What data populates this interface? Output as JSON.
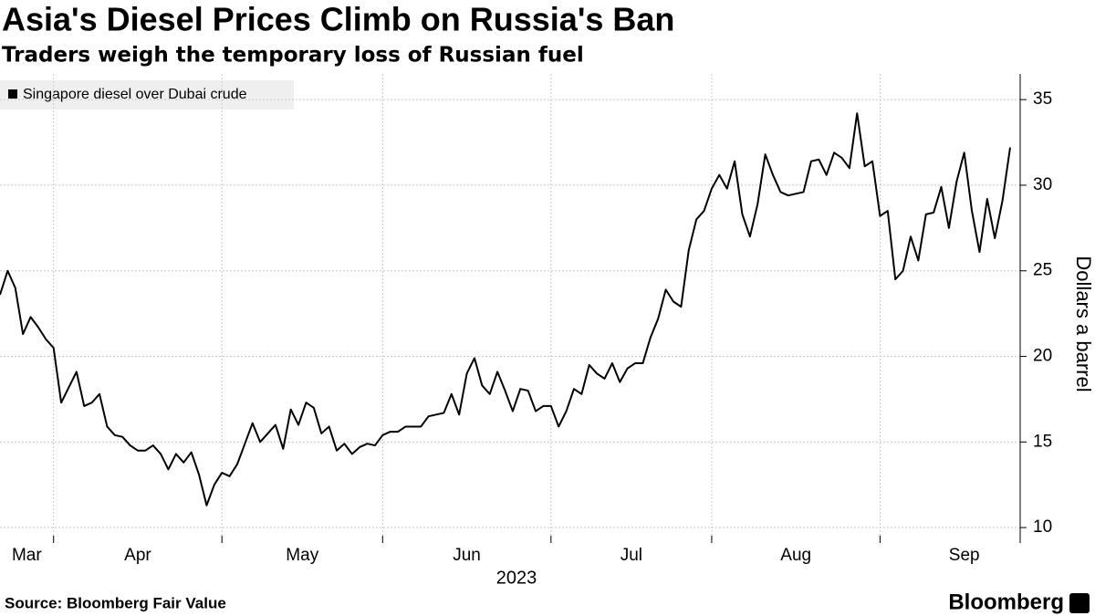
{
  "chart_data": {
    "type": "line",
    "title": "Asia's Diesel Prices Climb on Russia's Ban",
    "subtitle": "Traders weigh the temporary loss of Russian fuel",
    "ylabel": "Dollars a barrel",
    "xlabel": "2023",
    "source": "Source: Bloomberg Fair Value",
    "brand": "Bloomberg",
    "ylim": [
      9.1,
      36.5
    ],
    "yticks": [
      10,
      15,
      20,
      25,
      30,
      35
    ],
    "grid": true,
    "axis_side": "right",
    "categories": [
      "Mar",
      null,
      null,
      null,
      null,
      null,
      null,
      "Apr",
      null,
      null,
      null,
      null,
      null,
      null,
      null,
      null,
      null,
      null,
      null,
      null,
      null,
      null,
      null,
      null,
      null,
      null,
      null,
      null,
      null,
      "May",
      null,
      null,
      null,
      null,
      null,
      null,
      null,
      null,
      null,
      null,
      null,
      null,
      null,
      null,
      null,
      null,
      null,
      null,
      null,
      null,
      "Jun",
      null,
      null,
      null,
      null,
      null,
      null,
      null,
      null,
      null,
      null,
      null,
      null,
      null,
      null,
      null,
      null,
      null,
      null,
      null,
      null,
      null,
      "Jul",
      null,
      null,
      null,
      null,
      null,
      null,
      null,
      null,
      null,
      null,
      null,
      null,
      null,
      null,
      null,
      null,
      null,
      null,
      null,
      null,
      "Aug",
      null,
      null,
      null,
      null,
      null,
      null,
      null,
      null,
      null,
      null,
      null,
      null,
      null,
      null,
      null,
      null,
      null,
      null,
      null,
      null,
      null,
      "Sep",
      null,
      null,
      null,
      null,
      null,
      null,
      null,
      null,
      null,
      null,
      null,
      null,
      null,
      null,
      null,
      null,
      null
    ],
    "series": [
      {
        "name": "Singapore diesel over Dubai crude",
        "color": "#000000",
        "values": [
          23.6,
          25.0,
          24.0,
          21.3,
          22.3,
          21.7,
          21.0,
          20.5,
          17.3,
          18.2,
          19.1,
          17.1,
          17.3,
          17.8,
          15.9,
          15.4,
          15.3,
          14.8,
          14.5,
          14.5,
          14.8,
          14.3,
          13.4,
          14.3,
          13.8,
          14.4,
          13.1,
          11.3,
          12.5,
          13.2,
          13.0,
          13.7,
          14.9,
          16.1,
          15.0,
          15.5,
          16.0,
          14.6,
          16.9,
          16.0,
          17.3,
          17.0,
          15.5,
          15.9,
          14.5,
          14.9,
          14.3,
          14.7,
          14.9,
          14.8,
          15.4,
          15.6,
          15.6,
          15.9,
          15.9,
          15.9,
          16.5,
          16.6,
          16.7,
          17.8,
          16.6,
          19.0,
          19.9,
          18.3,
          17.8,
          19.1,
          18.0,
          16.8,
          18.1,
          18.0,
          16.8,
          17.1,
          17.1,
          15.9,
          16.8,
          18.1,
          17.8,
          19.5,
          19.0,
          18.7,
          19.6,
          18.5,
          19.3,
          19.6,
          19.6,
          21.1,
          22.2,
          23.9,
          23.2,
          22.9,
          26.2,
          28.0,
          28.5,
          29.8,
          30.6,
          29.8,
          31.4,
          28.3,
          27.0,
          28.9,
          31.8,
          30.6,
          29.6,
          29.4,
          29.5,
          29.6,
          31.4,
          31.5,
          30.6,
          31.9,
          31.6,
          31.0,
          34.2,
          31.1,
          31.4,
          28.2,
          28.5,
          24.5,
          25.0,
          27.0,
          25.6,
          28.3,
          28.4,
          29.9,
          27.5,
          30.2,
          31.9,
          28.5,
          26.1,
          29.2,
          26.9,
          29.1,
          32.2
        ]
      }
    ]
  }
}
